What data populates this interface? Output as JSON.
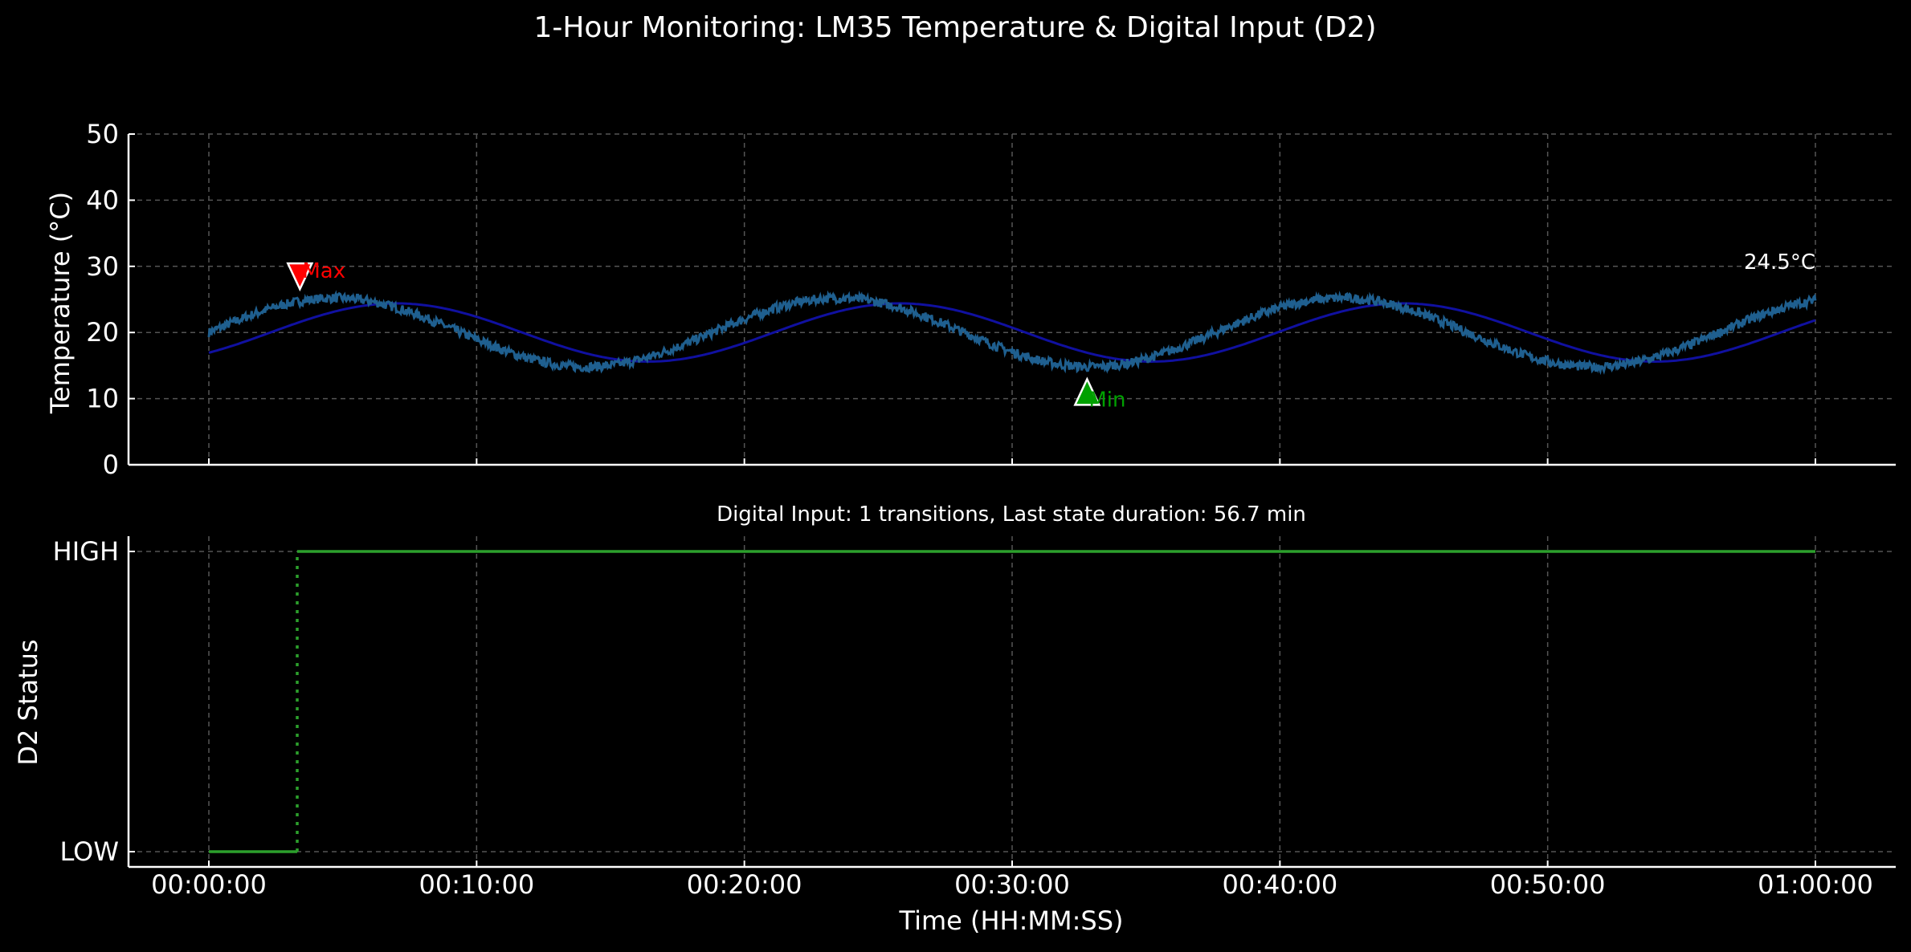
{
  "figure": {
    "title": "1-Hour Monitoring: LM35 Temperature & Digital Input (D2)",
    "background": "#000000",
    "grid_color": "#555555",
    "axis_color": "#ffffff"
  },
  "chart_data": [
    {
      "type": "line",
      "ylabel": "Temperature (°C)",
      "ylim": [
        0,
        50
      ],
      "xlim_minutes": [
        -3,
        63
      ],
      "y_ticks": [
        0,
        10,
        20,
        30,
        40,
        50
      ],
      "grid": true,
      "series": [
        {
          "role": "measured",
          "color": "#1f5f8f",
          "baseline": 20,
          "amplitude": 5.2,
          "period_minutes": 18.8,
          "noise_amplitude": 0.7,
          "x_minutes": [
            0,
            60
          ],
          "y_end": 24.5
        },
        {
          "role": "reference",
          "color": "#1010a0",
          "baseline": 20,
          "amplitude": 4.4,
          "period_minutes": 18.8,
          "phase_lag_minutes": 2.3,
          "x_minutes": [
            0,
            60
          ]
        }
      ],
      "annotations": [
        {
          "label": "Max",
          "x_minutes": 3.4,
          "y": 28.5,
          "color": "#ff0000",
          "marker": "triangle-down"
        },
        {
          "label": "Min",
          "x_minutes": 32.8,
          "y": 11.0,
          "color": "#00a000",
          "marker": "triangle-up"
        },
        {
          "label": "24.5°C",
          "x_minutes": 60,
          "y": 24.5,
          "color": "#ffffff"
        }
      ]
    },
    {
      "type": "line",
      "subtitle": "Digital Input: 1 transitions, Last state duration: 56.7 min",
      "ylabel": "D2 Status",
      "xlabel": "Time (HH:MM:SS)",
      "y_ticks": [
        "LOW",
        "HIGH"
      ],
      "x_ticks": [
        "00:00:00",
        "00:10:00",
        "00:20:00",
        "00:30:00",
        "00:40:00",
        "00:50:00",
        "01:00:00"
      ],
      "x_tick_minutes": [
        0,
        10,
        20,
        30,
        40,
        50,
        60
      ],
      "xlim_minutes": [
        -3,
        63
      ],
      "grid": true,
      "series": [
        {
          "role": "d2-state",
          "color": "#2ca02c",
          "transition_minute": 3.3,
          "points": [
            [
              0,
              0
            ],
            [
              3.3,
              0
            ],
            [
              3.3,
              1
            ],
            [
              60,
              1
            ]
          ]
        }
      ]
    }
  ]
}
